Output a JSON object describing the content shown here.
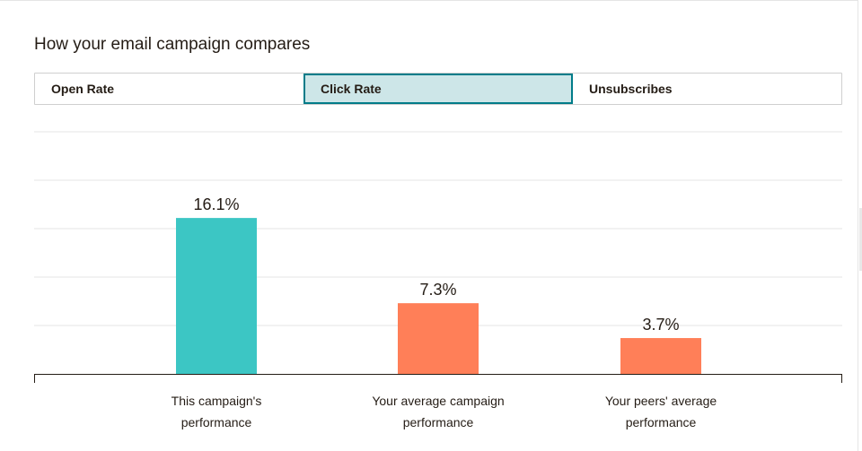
{
  "title": "How your email campaign compares",
  "tabs": [
    {
      "label": "Open Rate",
      "active": false
    },
    {
      "label": "Click Rate",
      "active": true
    },
    {
      "label": "Unsubscribes",
      "active": false
    }
  ],
  "colors": {
    "this_campaign": "#3cc6c4",
    "comparison": "#ff7f58",
    "gridline": "#e6e6e6",
    "axis": "#241c15",
    "active_tab_bg": "#cde6e8",
    "active_tab_border": "#007c89"
  },
  "chart_data": {
    "type": "bar",
    "categories": [
      [
        "This campaign's",
        "performance"
      ],
      [
        "Your average campaign",
        "performance"
      ],
      [
        "Your peers' average",
        "performance"
      ]
    ],
    "values": [
      16.1,
      7.3,
      3.7
    ],
    "value_labels": [
      "16.1%",
      "7.3%",
      "3.7%"
    ],
    "bar_colors": [
      "#3cc6c4",
      "#ff7f58",
      "#ff7f58"
    ],
    "ylim": [
      0,
      25
    ],
    "grid": true,
    "title": "",
    "xlabel": "",
    "ylabel": ""
  }
}
